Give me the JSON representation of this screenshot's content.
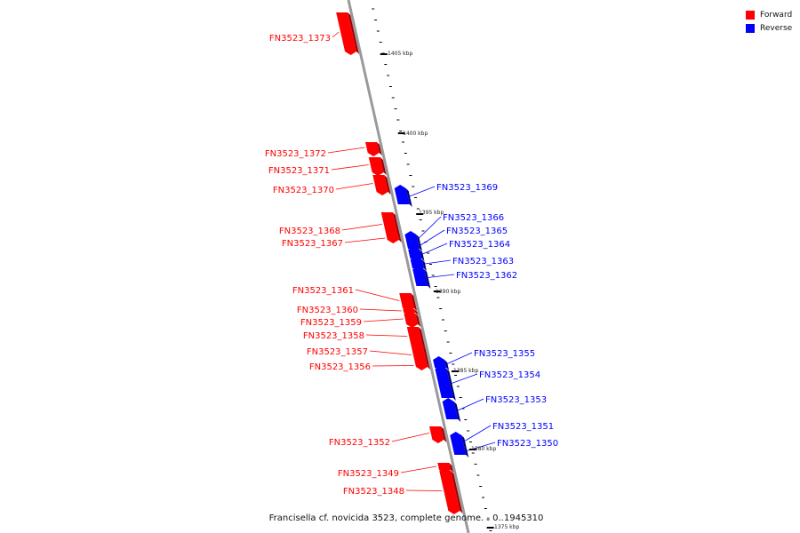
{
  "diagram": {
    "caption": "Francisella cf. novicida 3523, complete genome. - 0..1945310",
    "legend": [
      {
        "key": "forward",
        "label": "Forward",
        "color": "#ff0000"
      },
      {
        "key": "reverse",
        "label": "Reverse",
        "color": "#0000ff"
      }
    ],
    "colors": {
      "forward": "#ff0000",
      "forward_dark": "#a00000",
      "reverse": "#0000ff",
      "reverse_dark": "#00007a",
      "backbone": "#9a9a9a",
      "tick": "#000000"
    },
    "scale_labels": [
      "1405 kbp",
      "1400 kbp",
      "1395 kbp",
      "1390 kbp",
      "1385 kbp",
      "1380 kbp",
      "1375 kbp"
    ],
    "genes_forward": [
      {
        "label": "FN3523_1373"
      },
      {
        "label": "FN3523_1372"
      },
      {
        "label": "FN3523_1371"
      },
      {
        "label": "FN3523_1370"
      },
      {
        "label": "FN3523_1368"
      },
      {
        "label": "FN3523_1367"
      },
      {
        "label": "FN3523_1361"
      },
      {
        "label": "FN3523_1360"
      },
      {
        "label": "FN3523_1359"
      },
      {
        "label": "FN3523_1358"
      },
      {
        "label": "FN3523_1357"
      },
      {
        "label": "FN3523_1356"
      },
      {
        "label": "FN3523_1352"
      },
      {
        "label": "FN3523_1349"
      },
      {
        "label": "FN3523_1348"
      }
    ],
    "genes_reverse": [
      {
        "label": "FN3523_1369"
      },
      {
        "label": "FN3523_1366"
      },
      {
        "label": "FN3523_1365"
      },
      {
        "label": "FN3523_1364"
      },
      {
        "label": "FN3523_1363"
      },
      {
        "label": "FN3523_1362"
      },
      {
        "label": "FN3523_1355"
      },
      {
        "label": "FN3523_1354"
      },
      {
        "label": "FN3523_1353"
      },
      {
        "label": "FN3523_1351"
      },
      {
        "label": "FN3523_1350"
      }
    ]
  }
}
